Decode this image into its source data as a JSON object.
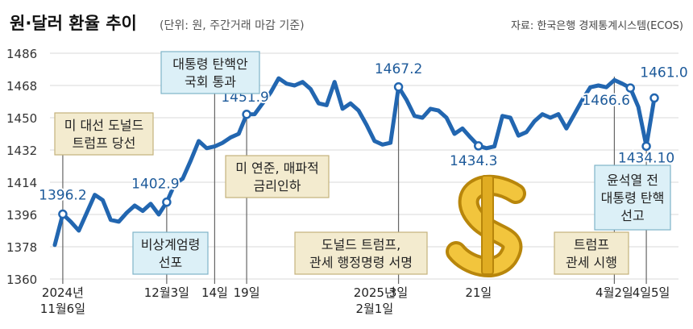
{
  "chart_data": {
    "type": "line",
    "title": "원·달러 환율 추이",
    "subtitle": "(단위: 원, 주간거래 마감 기준)",
    "source": "자료: 한국은행 경제통계시스템(ECOS)",
    "categories": [
      null,
      "2024년\n11월6일",
      null,
      null,
      null,
      null,
      null,
      null,
      null,
      null,
      null,
      null,
      null,
      null,
      "12월3일",
      null,
      null,
      null,
      null,
      null,
      "14일",
      null,
      null,
      null,
      "19일",
      null,
      null,
      null,
      null,
      null,
      null,
      null,
      null,
      null,
      null,
      null,
      null,
      null,
      null,
      null,
      "2025년\n2월1일",
      null,
      null,
      "3일",
      null,
      null,
      null,
      null,
      null,
      null,
      null,
      null,
      null,
      "21일",
      null,
      null,
      null,
      null,
      null,
      null,
      null,
      null,
      null,
      null,
      null,
      null,
      null,
      null,
      null,
      null,
      "4월2일",
      null,
      null,
      null,
      "4일",
      "5일"
    ],
    "series": [
      {
        "name": "원·달러 환율",
        "color": "#2266b0",
        "values": [
          1379,
          1396.2,
          1392,
          1387,
          1397,
          1407,
          1404,
          1393,
          1392,
          1397,
          1401,
          1398,
          1402,
          1396,
          1402.9,
          1413,
          1416,
          1426,
          1437,
          1433,
          1434,
          1436,
          1439,
          1441,
          1451.9,
          1452,
          1458,
          1464,
          1472,
          1469,
          1468,
          1470,
          1466,
          1458,
          1457,
          1470,
          1455,
          1458,
          1454,
          1446,
          1437,
          1435,
          1436,
          1467.2,
          1460,
          1451,
          1450,
          1455,
          1454,
          1450,
          1441,
          1444,
          1439,
          1434.3,
          1433,
          1434,
          1451,
          1450,
          1440,
          1442,
          1448,
          1452,
          1450,
          1452,
          1444,
          1452,
          1460,
          1467,
          1468,
          1467,
          1471,
          1469,
          1466.6,
          1456,
          1434.1,
          1461
        ],
        "value_labels": [
          null,
          "1396.2",
          null,
          null,
          null,
          null,
          null,
          null,
          null,
          null,
          null,
          null,
          null,
          null,
          "1402.9",
          null,
          null,
          null,
          null,
          null,
          null,
          null,
          null,
          null,
          "1451.9",
          null,
          null,
          null,
          null,
          null,
          null,
          null,
          null,
          null,
          null,
          null,
          null,
          null,
          null,
          null,
          null,
          null,
          null,
          "1467.2",
          null,
          null,
          null,
          null,
          null,
          null,
          null,
          null,
          null,
          "1434.3",
          null,
          null,
          null,
          null,
          null,
          null,
          null,
          null,
          null,
          null,
          null,
          null,
          null,
          null,
          null,
          null,
          null,
          null,
          "1466.6",
          null,
          "1434.10",
          "1461.0"
        ]
      }
    ],
    "ylim": [
      1360,
      1486
    ],
    "yticks": [
      1360,
      1378,
      1396,
      1414,
      1432,
      1450,
      1468,
      1486
    ],
    "grid": true,
    "annotations": [
      "미 대선 도널드\n트럼프 당선",
      "대통령 탄핵안\n국회 통과",
      "비상계엄령\n선포",
      "미 연준, 매파적\n금리인하",
      "도널드 트럼프,\n관세 행정명령 서명",
      "트럼프\n관세 시행",
      "윤석열 전\n대통령 탄핵\n선고"
    ]
  }
}
